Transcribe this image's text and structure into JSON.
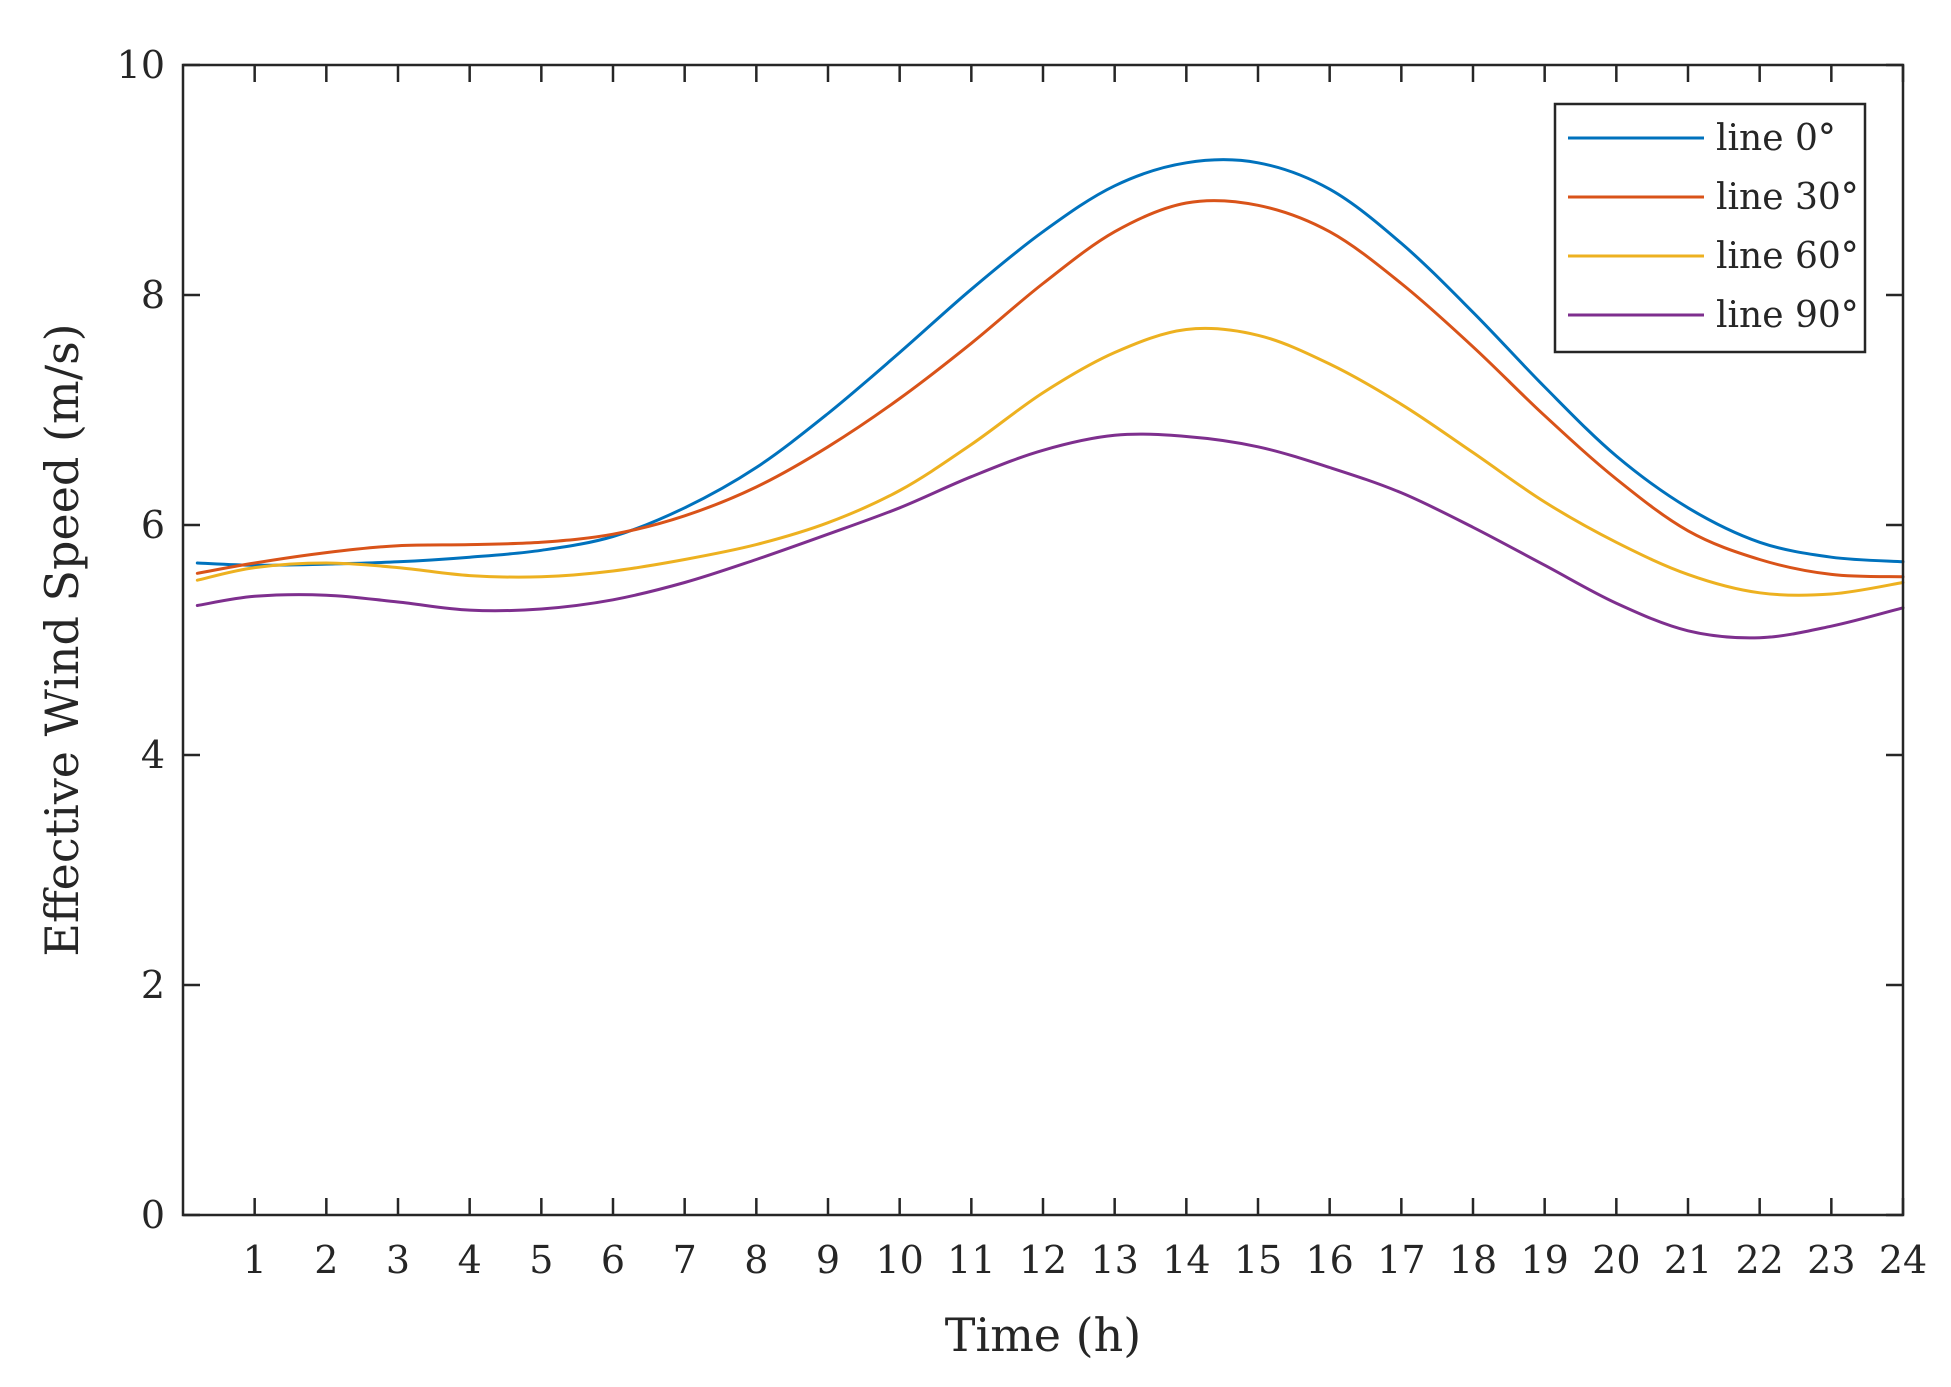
{
  "chart_data": {
    "type": "line",
    "title": "",
    "xlabel": "Time (h)",
    "ylabel": "Effective Wind Speed (m/s)",
    "xlim": [
      0,
      24
    ],
    "ylim": [
      0,
      10
    ],
    "x_ticks": [
      1,
      2,
      3,
      4,
      5,
      6,
      7,
      8,
      9,
      10,
      11,
      12,
      13,
      14,
      15,
      16,
      17,
      18,
      19,
      20,
      21,
      22,
      23,
      24
    ],
    "x_tick_labels": [
      "1",
      "2",
      "3",
      "4",
      "5",
      "6",
      "7",
      "8",
      "9",
      "10",
      "11",
      "12",
      "13",
      "14",
      "15",
      "16",
      "17",
      "18",
      "19",
      "20",
      "21",
      "22",
      "23",
      "24"
    ],
    "y_ticks": [
      0,
      2,
      4,
      6,
      8,
      10
    ],
    "y_tick_labels": [
      "0",
      "2",
      "4",
      "6",
      "8",
      "10"
    ],
    "grid": false,
    "legend_position": "top-right",
    "x": [
      0.2,
      1,
      2,
      3,
      4,
      5,
      6,
      7,
      8,
      9,
      10,
      11,
      12,
      13,
      14,
      15,
      16,
      17,
      18,
      19,
      20,
      21,
      22,
      23,
      24
    ],
    "series": [
      {
        "name": "line 0°",
        "color": "#0072BD",
        "values": [
          5.67,
          5.65,
          5.66,
          5.68,
          5.72,
          5.78,
          5.9,
          6.15,
          6.5,
          6.97,
          7.5,
          8.05,
          8.55,
          8.95,
          9.15,
          9.15,
          8.92,
          8.45,
          7.85,
          7.2,
          6.6,
          6.15,
          5.85,
          5.72,
          5.68
        ]
      },
      {
        "name": "line 30°",
        "color": "#D95319",
        "values": [
          5.58,
          5.67,
          5.76,
          5.82,
          5.83,
          5.85,
          5.92,
          6.08,
          6.33,
          6.68,
          7.1,
          7.58,
          8.1,
          8.55,
          8.8,
          8.78,
          8.55,
          8.1,
          7.55,
          6.95,
          6.4,
          5.95,
          5.7,
          5.57,
          5.55
        ]
      },
      {
        "name": "line 60°",
        "color": "#EDB120",
        "values": [
          5.52,
          5.63,
          5.67,
          5.63,
          5.56,
          5.55,
          5.6,
          5.7,
          5.83,
          6.02,
          6.3,
          6.7,
          7.15,
          7.5,
          7.7,
          7.65,
          7.4,
          7.05,
          6.63,
          6.2,
          5.85,
          5.57,
          5.41,
          5.4,
          5.5
        ]
      },
      {
        "name": "line 90°",
        "color": "#7E2F8E",
        "values": [
          5.3,
          5.38,
          5.39,
          5.33,
          5.26,
          5.27,
          5.35,
          5.5,
          5.7,
          5.92,
          6.15,
          6.42,
          6.65,
          6.78,
          6.77,
          6.68,
          6.5,
          6.28,
          5.98,
          5.65,
          5.32,
          5.08,
          5.02,
          5.12,
          5.28
        ]
      }
    ]
  }
}
